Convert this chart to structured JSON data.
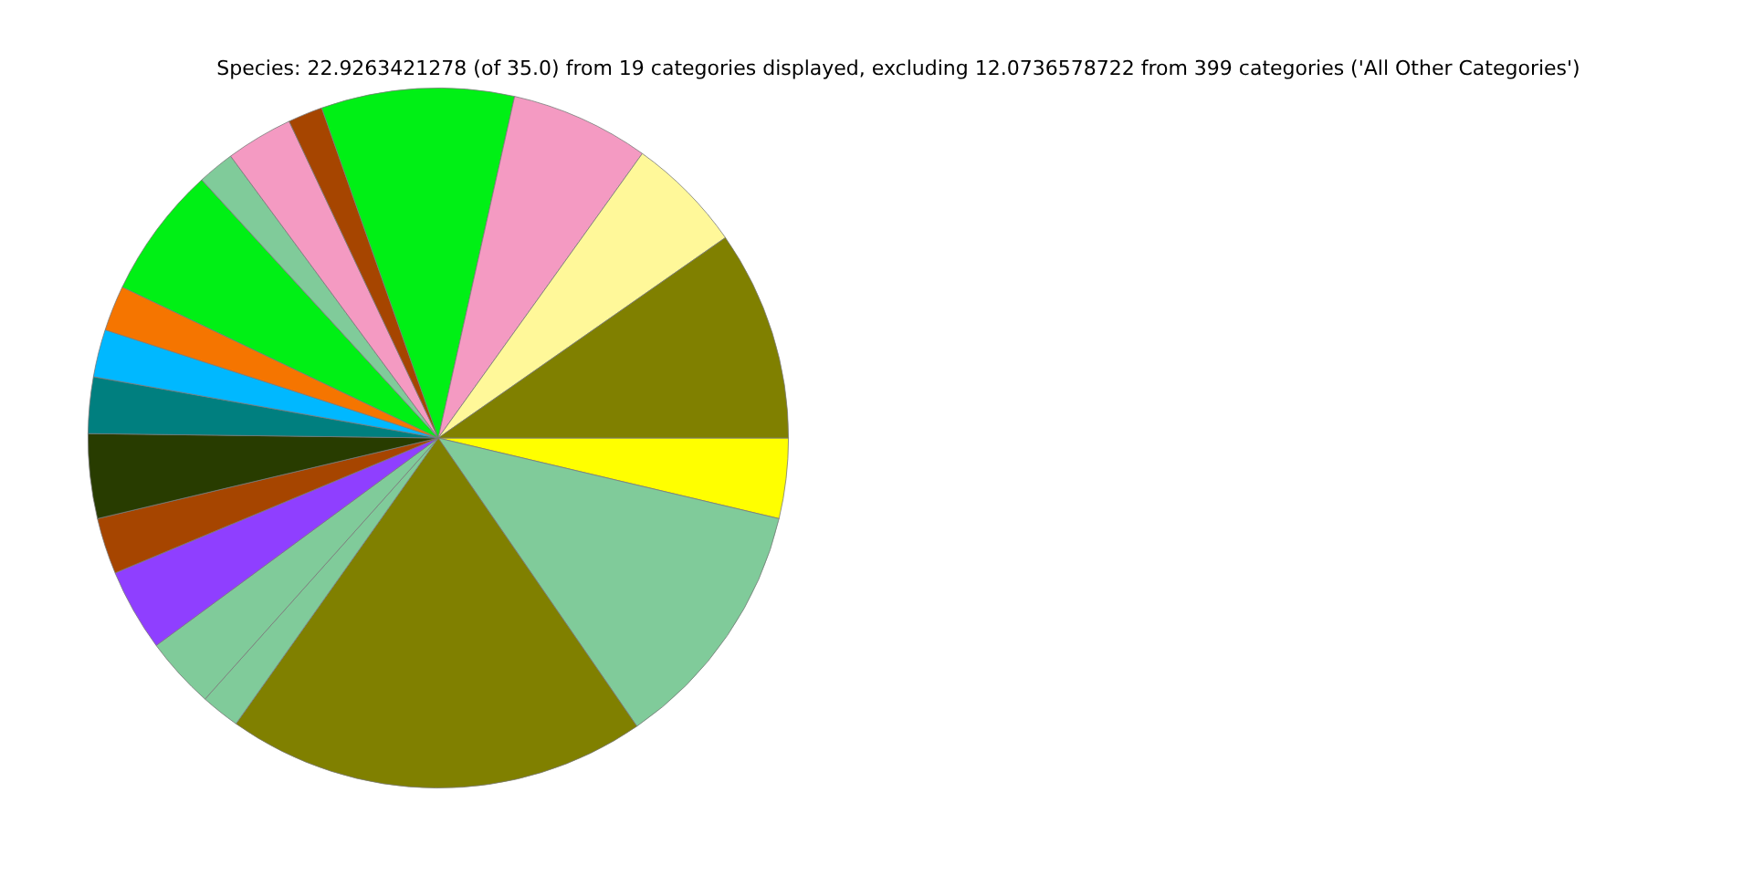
{
  "chart_data": {
    "type": "pie",
    "title": "Species: 22.9263421278 (of 35.0) from 19 categories displayed, excluding 12.0736578722 from 399 categories ('All Other Categories')",
    "categories": [
      null,
      null,
      null,
      null,
      null,
      null,
      null,
      null,
      null,
      null,
      null,
      null,
      null,
      null,
      null,
      null,
      null,
      null,
      null
    ],
    "values": [
      9.7,
      5.4,
      6.4,
      8.9,
      1.6,
      3.1,
      1.7,
      6.1,
      2.1,
      2.2,
      2.6,
      3.9,
      2.6,
      3.8,
      3.3,
      1.8,
      19.4,
      11.7,
      3.7
    ],
    "colors": [
      "#808000",
      "#fff899",
      "#f49ac2",
      "#00f015",
      "#a64500",
      "#f49ac2",
      "#80cb9a",
      "#00f015",
      "#f57500",
      "#00b8ff",
      "#007f7f",
      "#283c00",
      "#a64500",
      "#8f3fff",
      "#80cb9a",
      "#80cb9a",
      "#808000",
      "#80cb9a",
      "#ffff00"
    ],
    "legend": false
  }
}
